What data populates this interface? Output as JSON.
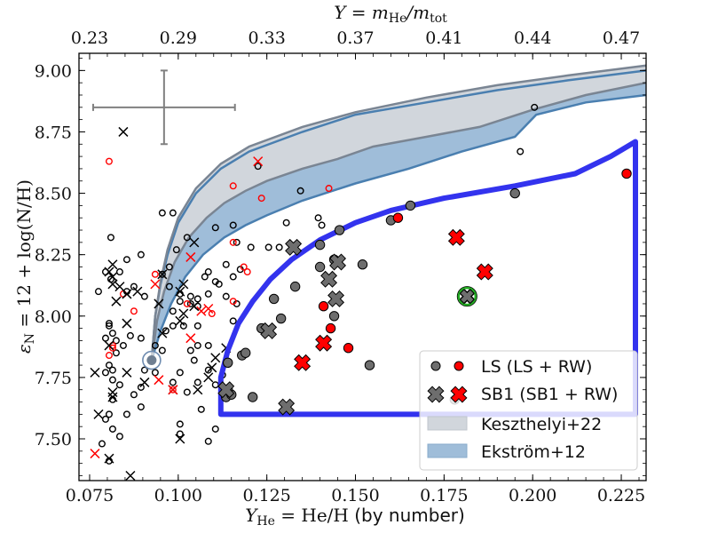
{
  "chart_data": {
    "type": "scatter",
    "xlabel": "Y_He = He/H (by number)",
    "xlabel_parts": {
      "main": "Y",
      "sub": "He",
      "rest": " = He/H ",
      "note": "(by number)"
    },
    "ylabel": "ε_N = 12 + log(N/H)",
    "ylabel_parts": {
      "main": "ε",
      "sub": "N",
      "rest": " = 12 + log(N/H)"
    },
    "top_xlabel": "Y = m_He / m_tot",
    "top_xlabel_parts": {
      "a": "Y = m",
      "sub1": "He",
      "b": "/m",
      "sub2": "tot"
    },
    "xlim": [
      0.072,
      0.232
    ],
    "ylim": [
      7.33,
      9.07
    ],
    "xticks": [
      0.075,
      0.1,
      0.125,
      0.15,
      0.175,
      0.2,
      0.225
    ],
    "xtick_labels": [
      "0.075",
      "0.100",
      "0.125",
      "0.150",
      "0.175",
      "0.200",
      "0.225"
    ],
    "yticks": [
      7.5,
      7.75,
      8.0,
      8.25,
      8.5,
      8.75,
      9.0
    ],
    "ytick_labels": [
      "7.50",
      "7.75",
      "8.00",
      "8.25",
      "8.50",
      "8.75",
      "9.00"
    ],
    "top_xtick_positions": [
      0.075,
      0.1,
      0.125,
      0.15,
      0.175,
      0.2,
      0.225
    ],
    "top_xtick_labels": [
      "0.23",
      "0.29",
      "0.33",
      "0.37",
      "0.41",
      "0.44",
      "0.47"
    ],
    "grid": false,
    "legend_position": "lower-right",
    "legend": [
      {
        "label": "LS (LS + RW)",
        "kind": "circles"
      },
      {
        "label": "SB1 (SB1 + RW)",
        "kind": "crosses"
      },
      {
        "label": "Keszthelyi+22",
        "kind": "patch",
        "color": "#d1d6dc"
      },
      {
        "label": "Ekström+12",
        "kind": "patch",
        "color": "#9fbdd9"
      }
    ],
    "colors": {
      "gray_fill": "#6e6e6e",
      "red": "#ff0000",
      "black": "#000000",
      "region_blue": "#3333ee",
      "kesz_fill": "#d1d6dc",
      "kesz_line": "#7a8593",
      "ekst_fill": "#9fbdd9",
      "ekst_line": "#4a7fb0",
      "errorbar": "#808080",
      "highlight": "#22aa22"
    },
    "error_bar": {
      "x": 0.096,
      "y": 8.85,
      "xerr": 0.02,
      "yerr": 0.15
    },
    "start_point": {
      "x": 0.0925,
      "y": 7.82
    },
    "highlight_point": {
      "x": 0.1815,
      "y": 8.08
    },
    "region_polygon": [
      [
        0.112,
        7.6
      ],
      [
        0.112,
        7.75
      ],
      [
        0.114,
        7.86
      ],
      [
        0.117,
        7.97
      ],
      [
        0.121,
        8.06
      ],
      [
        0.126,
        8.15
      ],
      [
        0.132,
        8.23
      ],
      [
        0.14,
        8.31
      ],
      [
        0.15,
        8.38
      ],
      [
        0.16,
        8.43
      ],
      [
        0.175,
        8.48
      ],
      [
        0.195,
        8.53
      ],
      [
        0.212,
        8.58
      ],
      [
        0.222,
        8.65
      ],
      [
        0.229,
        8.71
      ],
      [
        0.229,
        7.6
      ]
    ],
    "keszthelyi_upper": [
      [
        0.0925,
        7.82
      ],
      [
        0.0935,
        8.0
      ],
      [
        0.095,
        8.14
      ],
      [
        0.097,
        8.27
      ],
      [
        0.1,
        8.4
      ],
      [
        0.105,
        8.52
      ],
      [
        0.112,
        8.62
      ],
      [
        0.12,
        8.69
      ],
      [
        0.135,
        8.77
      ],
      [
        0.15,
        8.83
      ],
      [
        0.17,
        8.89
      ],
      [
        0.19,
        8.94
      ],
      [
        0.21,
        8.98
      ],
      [
        0.232,
        9.02
      ]
    ],
    "keszthelyi_lower": [
      [
        0.0925,
        7.82
      ],
      [
        0.094,
        7.98
      ],
      [
        0.096,
        8.1
      ],
      [
        0.099,
        8.22
      ],
      [
        0.103,
        8.32
      ],
      [
        0.108,
        8.4
      ],
      [
        0.113,
        8.46
      ],
      [
        0.119,
        8.51
      ],
      [
        0.125,
        8.55
      ],
      [
        0.135,
        8.6
      ],
      [
        0.145,
        8.64
      ],
      [
        0.155,
        8.69
      ],
      [
        0.17,
        8.73
      ],
      [
        0.185,
        8.77
      ],
      [
        0.2,
        8.84
      ],
      [
        0.215,
        8.9
      ],
      [
        0.232,
        8.95
      ]
    ],
    "ekstrom_upper": [
      [
        0.0925,
        7.82
      ],
      [
        0.0935,
        8.0
      ],
      [
        0.095,
        8.13
      ],
      [
        0.097,
        8.25
      ],
      [
        0.1,
        8.38
      ],
      [
        0.105,
        8.5
      ],
      [
        0.112,
        8.6
      ],
      [
        0.12,
        8.67
      ],
      [
        0.135,
        8.75
      ],
      [
        0.15,
        8.82
      ],
      [
        0.17,
        8.87
      ],
      [
        0.19,
        8.92
      ],
      [
        0.21,
        8.96
      ],
      [
        0.232,
        9.0
      ]
    ],
    "ekstrom_lower": [
      [
        0.0925,
        7.82
      ],
      [
        0.095,
        7.94
      ],
      [
        0.098,
        8.05
      ],
      [
        0.102,
        8.16
      ],
      [
        0.107,
        8.25
      ],
      [
        0.113,
        8.32
      ],
      [
        0.119,
        8.37
      ],
      [
        0.125,
        8.41
      ],
      [
        0.135,
        8.47
      ],
      [
        0.15,
        8.54
      ],
      [
        0.165,
        8.6
      ],
      [
        0.18,
        8.67
      ],
      [
        0.195,
        8.73
      ],
      [
        0.201,
        8.82
      ],
      [
        0.215,
        8.87
      ],
      [
        0.232,
        8.9
      ]
    ],
    "series": [
      {
        "name": "LS (filled gray)",
        "marker": "filled-circle",
        "color": "#6e6e6e",
        "points": [
          [
            0.1135,
            7.67
          ],
          [
            0.115,
            7.68
          ],
          [
            0.121,
            7.67
          ],
          [
            0.114,
            7.7
          ],
          [
            0.114,
            7.81
          ],
          [
            0.118,
            7.84
          ],
          [
            0.119,
            7.85
          ],
          [
            0.1255,
            7.94
          ],
          [
            0.1235,
            7.95
          ],
          [
            0.129,
            7.99
          ],
          [
            0.127,
            8.07
          ],
          [
            0.133,
            8.12
          ],
          [
            0.14,
            8.29
          ],
          [
            0.14,
            8.2
          ],
          [
            0.1455,
            8.35
          ],
          [
            0.144,
            8.23
          ],
          [
            0.152,
            8.21
          ],
          [
            0.144,
            8.0
          ],
          [
            0.154,
            7.8
          ],
          [
            0.16,
            8.39
          ],
          [
            0.1655,
            8.45
          ],
          [
            0.195,
            8.5
          ],
          [
            0.178,
            7.66
          ]
        ]
      },
      {
        "name": "LS + RW (filled red)",
        "marker": "filled-circle",
        "color": "#ff0000",
        "points": [
          [
            0.162,
            8.4
          ],
          [
            0.141,
            8.04
          ],
          [
            0.143,
            7.95
          ],
          [
            0.148,
            7.87
          ],
          [
            0.2265,
            8.58
          ]
        ]
      },
      {
        "name": "SB1 (gray cross)",
        "marker": "filled-x",
        "color": "#6e6e6e",
        "points": [
          [
            0.1325,
            8.28
          ],
          [
            0.1425,
            8.15
          ],
          [
            0.145,
            8.22
          ],
          [
            0.1445,
            8.07
          ],
          [
            0.1255,
            7.94
          ],
          [
            0.1135,
            7.7
          ],
          [
            0.1305,
            7.63
          ],
          [
            0.1815,
            8.08
          ]
        ]
      },
      {
        "name": "SB1 + RW (red cross)",
        "marker": "filled-x",
        "color": "#ff0000",
        "points": [
          [
            0.1785,
            8.32
          ],
          [
            0.1865,
            8.18
          ],
          [
            0.141,
            7.89
          ],
          [
            0.135,
            7.81
          ]
        ]
      },
      {
        "name": "Comparison sample (open black)",
        "marker": "open-circle",
        "color": "#000000",
        "points": [
          [
            0.0775,
            8.1
          ],
          [
            0.081,
            8.32
          ],
          [
            0.081,
            8.15
          ],
          [
            0.0795,
            8.18
          ],
          [
            0.0835,
            8.18
          ],
          [
            0.0855,
            8.23
          ],
          [
            0.0855,
            8.1
          ],
          [
            0.0875,
            8.12
          ],
          [
            0.0895,
            8.25
          ],
          [
            0.0905,
            8.08
          ],
          [
            0.0955,
            8.42
          ],
          [
            0.0985,
            8.42
          ],
          [
            0.0995,
            8.27
          ],
          [
            0.0975,
            8.2
          ],
          [
            0.0955,
            8.17
          ],
          [
            0.0975,
            8.12
          ],
          [
            0.1025,
            8.32
          ],
          [
            0.1105,
            8.36
          ],
          [
            0.1165,
            8.3
          ],
          [
            0.1205,
            8.28
          ],
          [
            0.1135,
            8.21
          ],
          [
            0.1175,
            8.19
          ],
          [
            0.1155,
            8.16
          ],
          [
            0.1105,
            8.14
          ],
          [
            0.1085,
            8.18
          ],
          [
            0.1115,
            8.13
          ],
          [
            0.1005,
            8.09
          ],
          [
            0.1005,
            8.06
          ],
          [
            0.1035,
            8.08
          ],
          [
            0.1055,
            8.07
          ],
          [
            0.1085,
            8.09
          ],
          [
            0.0805,
            7.97
          ],
          [
            0.0805,
            7.96
          ],
          [
            0.0815,
            7.93
          ],
          [
            0.0795,
            7.91
          ],
          [
            0.0825,
            7.9
          ],
          [
            0.0845,
            7.88
          ],
          [
            0.0865,
            7.92
          ],
          [
            0.0895,
            7.91
          ],
          [
            0.0935,
            7.88
          ],
          [
            0.0825,
            7.85
          ],
          [
            0.0805,
            7.8
          ],
          [
            0.0795,
            7.77
          ],
          [
            0.0815,
            7.78
          ],
          [
            0.0815,
            7.74
          ],
          [
            0.0835,
            7.72
          ],
          [
            0.0875,
            7.68
          ],
          [
            0.0895,
            7.71
          ],
          [
            0.0815,
            7.66
          ],
          [
            0.0855,
            7.6
          ],
          [
            0.0895,
            7.63
          ],
          [
            0.0805,
            7.6
          ],
          [
            0.0795,
            7.58
          ],
          [
            0.0815,
            7.54
          ],
          [
            0.0835,
            7.51
          ],
          [
            0.0785,
            7.48
          ],
          [
            0.0805,
            7.41
          ],
          [
            0.0905,
            7.78
          ],
          [
            0.0935,
            7.77
          ],
          [
            0.0955,
            7.86
          ],
          [
            0.0985,
            7.73
          ],
          [
            0.1005,
            7.77
          ],
          [
            0.1055,
            7.73
          ],
          [
            0.1105,
            7.72
          ],
          [
            0.1085,
            7.78
          ],
          [
            0.1025,
            7.69
          ],
          [
            0.1005,
            7.56
          ],
          [
            0.1005,
            7.52
          ],
          [
            0.1085,
            7.49
          ],
          [
            0.1065,
            7.62
          ],
          [
            0.1105,
            7.54
          ],
          [
            0.1125,
            7.76
          ],
          [
            0.1035,
            8.05
          ],
          [
            0.1135,
            8.08
          ],
          [
            0.1165,
            8.05
          ],
          [
            0.1075,
            8.16
          ],
          [
            0.0985,
            8.02
          ],
          [
            0.1155,
            7.98
          ],
          [
            0.1055,
            7.96
          ],
          [
            0.1015,
            7.96
          ],
          [
            0.0985,
            7.96
          ],
          [
            0.0965,
            7.94
          ],
          [
            0.1155,
            8.37
          ],
          [
            0.1225,
            8.61
          ],
          [
            0.1285,
            8.28
          ],
          [
            0.1255,
            8.28
          ],
          [
            0.1305,
            8.38
          ],
          [
            0.1345,
            8.51
          ],
          [
            0.1395,
            8.4
          ],
          [
            0.1405,
            8.37
          ],
          [
            0.2005,
            8.85
          ],
          [
            0.1965,
            8.67
          ],
          [
            0.1055,
            8.04
          ],
          [
            0.1035,
            7.86
          ],
          [
            0.1055,
            7.88
          ],
          [
            0.1085,
            7.88
          ],
          [
            0.1045,
            7.82
          ]
        ]
      },
      {
        "name": "Comparison sample (open red)",
        "marker": "open-circle",
        "color": "#ff0000",
        "points": [
          [
            0.0805,
            8.63
          ],
          [
            0.1155,
            8.53
          ],
          [
            0.1235,
            8.48
          ],
          [
            0.1425,
            8.52
          ],
          [
            0.1155,
            8.3
          ],
          [
            0.1185,
            8.2
          ],
          [
            0.1195,
            8.18
          ],
          [
            0.1155,
            8.06
          ],
          [
            0.1095,
            8.01
          ],
          [
            0.1025,
            8.05
          ],
          [
            0.0935,
            8.17
          ],
          [
            0.0815,
            7.87
          ],
          [
            0.0815,
            7.88
          ],
          [
            0.0875,
            8.02
          ],
          [
            0.0845,
            8.09
          ],
          [
            0.0805,
            7.84
          ],
          [
            0.0985,
            7.7
          ]
        ]
      },
      {
        "name": "Comparison sample (black x)",
        "marker": "x",
        "color": "#000000",
        "points": [
          [
            0.0845,
            8.75
          ],
          [
            0.0815,
            8.21
          ],
          [
            0.0805,
            8.18
          ],
          [
            0.0815,
            8.16
          ],
          [
            0.0815,
            8.13
          ],
          [
            0.0835,
            8.12
          ],
          [
            0.0855,
            8.09
          ],
          [
            0.0825,
            8.06
          ],
          [
            0.0885,
            8.1
          ],
          [
            0.0955,
            8.17
          ],
          [
            0.1045,
            8.3
          ],
          [
            0.1015,
            8.13
          ],
          [
            0.1005,
            8.1
          ],
          [
            0.0945,
            8.05
          ],
          [
            0.0855,
            7.97
          ],
          [
            0.0805,
            7.88
          ],
          [
            0.0765,
            7.77
          ],
          [
            0.0775,
            7.6
          ],
          [
            0.0815,
            7.69
          ],
          [
            0.0815,
            7.67
          ],
          [
            0.0805,
            7.42
          ],
          [
            0.0865,
            7.35
          ],
          [
            0.0955,
            7.93
          ],
          [
            0.1015,
            8.01
          ],
          [
            0.1045,
            8.04
          ],
          [
            0.1005,
            7.98
          ],
          [
            0.0855,
            7.77
          ],
          [
            0.0905,
            7.73
          ],
          [
            0.1055,
            7.7
          ],
          [
            0.1095,
            7.79
          ],
          [
            0.1105,
            7.83
          ],
          [
            0.1005,
            7.5
          ],
          [
            0.0985,
            7.7
          ],
          [
            0.1085,
            7.75
          ],
          [
            0.1135,
            7.87
          ]
        ]
      },
      {
        "name": "Comparison sample (red x)",
        "marker": "x",
        "color": "#ff0000",
        "points": [
          [
            0.1225,
            8.63
          ],
          [
            0.1035,
            8.24
          ],
          [
            0.0935,
            8.13
          ],
          [
            0.1065,
            8.02
          ],
          [
            0.1085,
            8.03
          ],
          [
            0.1035,
            7.91
          ],
          [
            0.0945,
            7.74
          ],
          [
            0.0985,
            7.7
          ],
          [
            0.0765,
            7.44
          ]
        ]
      }
    ]
  }
}
